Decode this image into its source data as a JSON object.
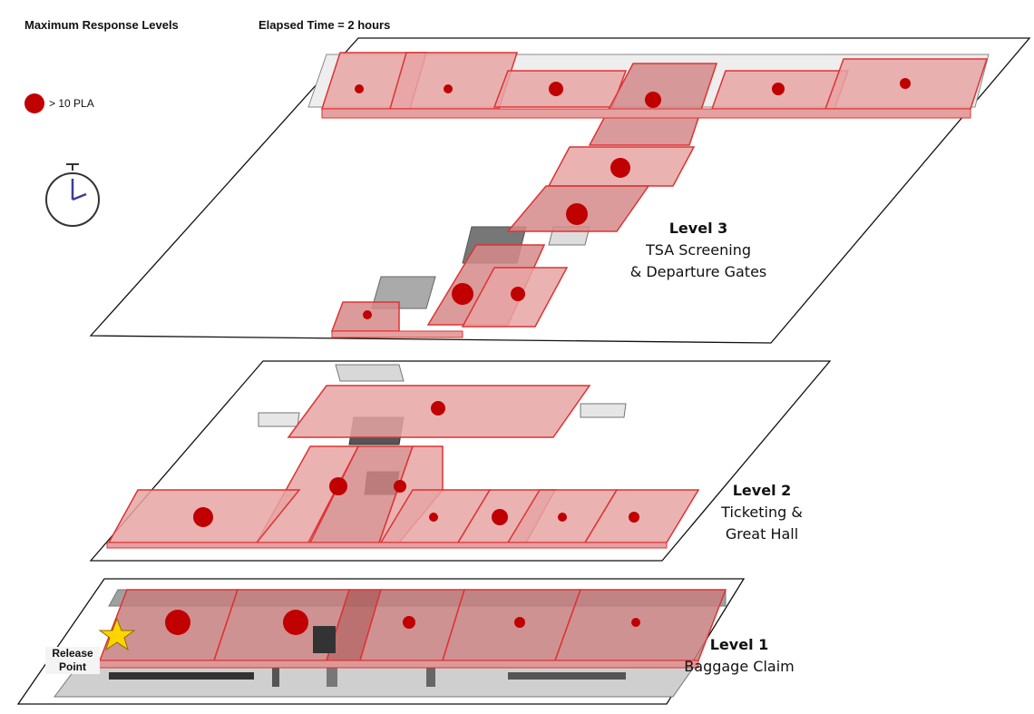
{
  "header": {
    "title": "Maximum Response Levels",
    "elapsed": "Elapsed Time = 2 hours"
  },
  "legend": {
    "label": "> 10 PLA",
    "marker_color": "#cc0000"
  },
  "levels": [
    {
      "title": "Level 3",
      "subtitle_lines": [
        "TSA Screening",
        "& Departure Gates"
      ]
    },
    {
      "title": "Level 2",
      "subtitle_lines": [
        "Ticketing &",
        "Great Hall"
      ]
    },
    {
      "title": "Level 1",
      "subtitle_lines": [
        "Baggage Claim"
      ]
    }
  ],
  "release_point": {
    "lines": [
      "Release",
      "Point"
    ],
    "marker_color": "#ffd400"
  },
  "colors": {
    "zone_fill": "#e58a8a",
    "zone_dark": "#b86060",
    "zone_stroke": "#cc2222",
    "marker": "#c00000",
    "floor_line": "#111111",
    "building_gray": "#9a9a9a"
  }
}
